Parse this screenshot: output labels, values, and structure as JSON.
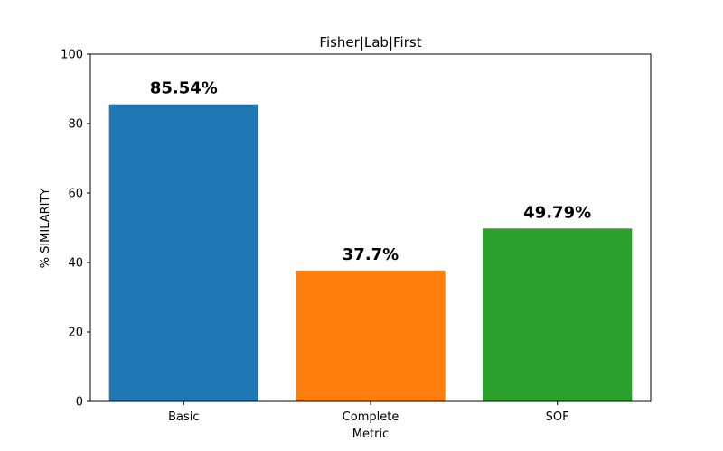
{
  "chart_data": {
    "type": "bar",
    "title": "Fisher|Lab|First",
    "xlabel": "Metric",
    "ylabel": "% SIMILARITY",
    "ylim": [
      0,
      100
    ],
    "yticks": [
      0,
      20,
      40,
      60,
      80,
      100
    ],
    "categories": [
      "Basic",
      "Complete",
      "SOF"
    ],
    "values": [
      85.54,
      37.7,
      49.79
    ],
    "data_labels": [
      "85.54%",
      "37.7%",
      "49.79%"
    ],
    "colors": [
      "#1f77b4",
      "#ff7f0e",
      "#2ca02c"
    ],
    "grid": false,
    "legend": "none"
  }
}
